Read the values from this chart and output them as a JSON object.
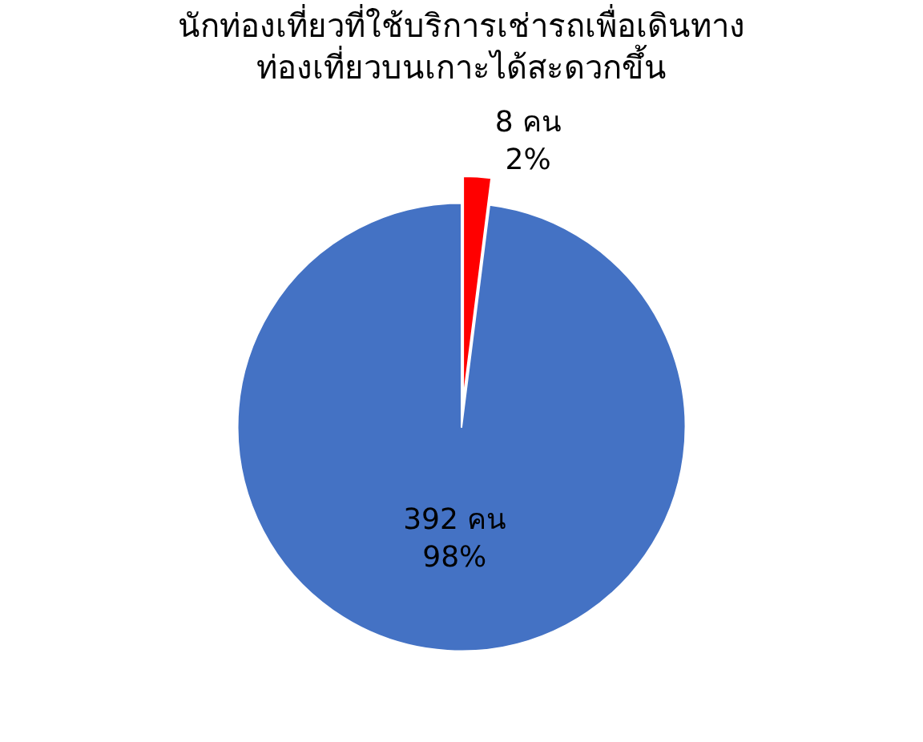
{
  "chart_data": {
    "type": "pie",
    "title": "นักท่องเที่ยวที่ใช้บริการเช่ารถเพื่อเดินทาง\nท่องเที่ยวบนเกาะได้สะดวกขึ้น",
    "categories": [
      null,
      null
    ],
    "values": [
      8,
      392
    ],
    "colors": [
      "#ff0000",
      "#4472c4"
    ],
    "value_labels": [
      "8 คน\n2%",
      "392 คน\n98%"
    ],
    "legend": false
  }
}
